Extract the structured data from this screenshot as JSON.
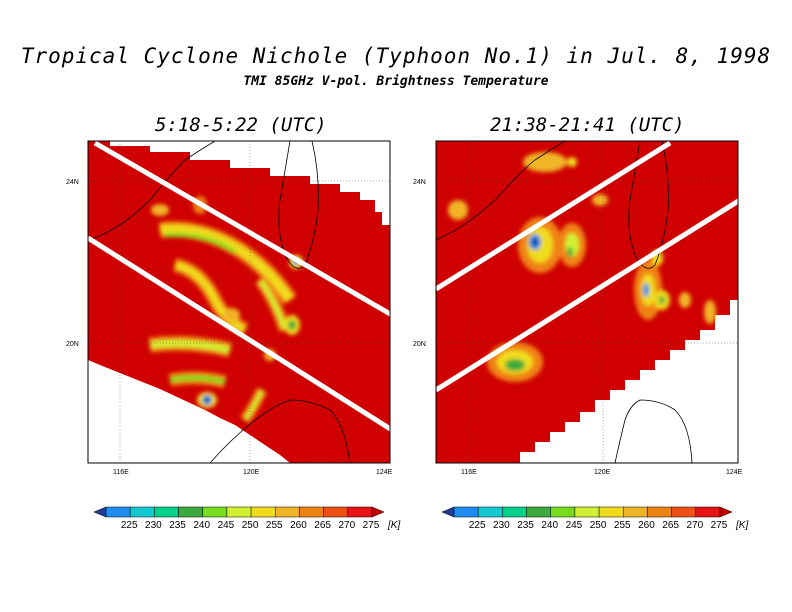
{
  "title": "Tropical Cyclone Nichole (Typhoon No.1) in Jul. 8, 1998",
  "subtitle": "TMI 85GHz V-pol. Brightness Temperature",
  "panels": [
    {
      "title": "5:18-5:22 (UTC)"
    },
    {
      "title": "21:38-21:41 (UTC)"
    }
  ],
  "axes": {
    "lat_ticks": [
      "24N",
      "20N"
    ],
    "lon_ticks": [
      "116E",
      "120E",
      "124E"
    ]
  },
  "colorbar": {
    "levels": [
      "225",
      "230",
      "235",
      "240",
      "245",
      "250",
      "255",
      "260",
      "265",
      "270",
      "275"
    ],
    "unit": "[K]",
    "colors": [
      "#1e3c96",
      "#1e8cf0",
      "#14c8d2",
      "#00d28c",
      "#3caa3c",
      "#78dc1e",
      "#d2f032",
      "#f0dc1e",
      "#f0b428",
      "#f08214",
      "#f05014",
      "#e61414",
      "#c80000"
    ]
  },
  "colors": {
    "background_field": "#d00000",
    "swath_edge": "#ffffff",
    "land_outline": "#000000"
  }
}
